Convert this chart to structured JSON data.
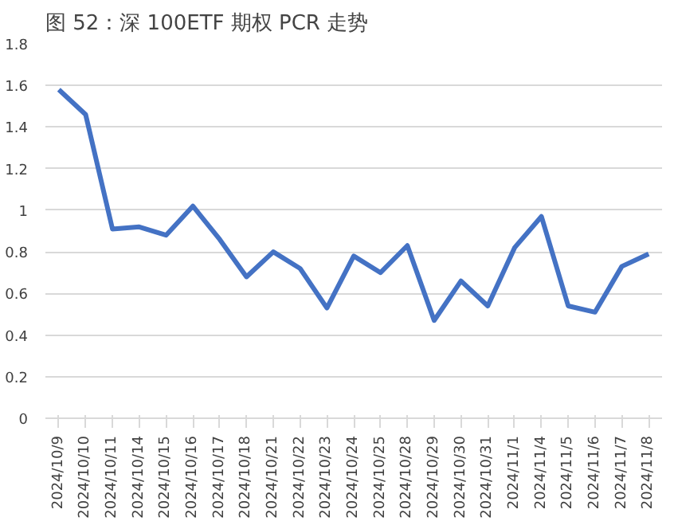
{
  "chart_data": {
    "type": "line",
    "title": "图 52：深 100ETF 期权 PCR 走势",
    "categories": [
      "2024/10/9",
      "2024/10/10",
      "2024/10/11",
      "2024/10/14",
      "2024/10/15",
      "2024/10/16",
      "2024/10/17",
      "2024/10/18",
      "2024/10/21",
      "2024/10/22",
      "2024/10/23",
      "2024/10/24",
      "2024/10/25",
      "2024/10/28",
      "2024/10/29",
      "2024/10/30",
      "2024/10/31",
      "2024/11/1",
      "2024/11/4",
      "2024/11/5",
      "2024/11/6",
      "2024/11/7",
      "2024/11/8"
    ],
    "series": [
      {
        "color": "#4472c4",
        "values": [
          1.58,
          1.46,
          0.91,
          0.92,
          0.88,
          1.02,
          0.86,
          0.68,
          0.8,
          0.72,
          0.53,
          0.78,
          0.7,
          0.83,
          0.47,
          0.66,
          0.54,
          0.82,
          0.97,
          0.54,
          0.51,
          0.73,
          0.79
        ]
      }
    ],
    "ylim": [
      0,
      1.8
    ],
    "yticks": [
      0,
      0.2,
      0.4,
      0.6,
      0.8,
      1,
      1.2,
      1.4,
      1.6,
      1.8
    ],
    "grid": "y",
    "marker": "none",
    "line_style": "solid"
  }
}
